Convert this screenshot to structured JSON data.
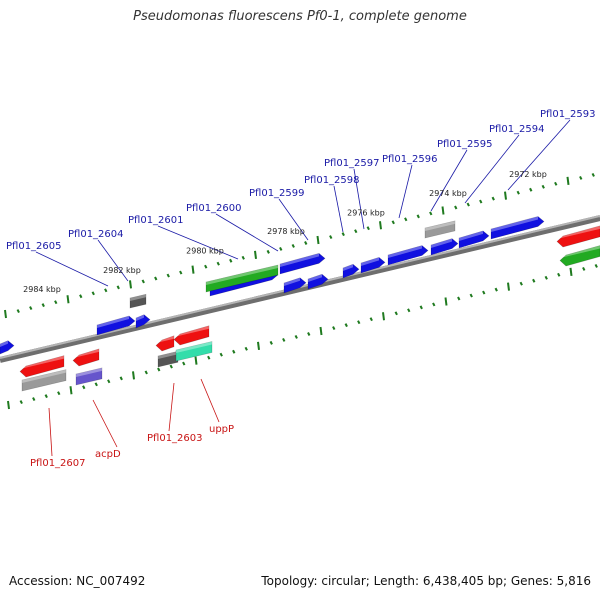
{
  "title": "Pseudomonas fluorescens Pf0-1, complete genome",
  "accession": "Accession: NC_007492",
  "summary": "Topology: circular; Length: 6,438,405 bp; Genes: 5,816",
  "colors": {
    "backbone": "#8a8a8a",
    "tick": "#1f7a1f",
    "forward_label": "#1a1aa6",
    "reverse_label": "#c81414",
    "blue_gene": "#1010e0",
    "red_gene": "#ee1111",
    "green_gene": "#22aa22",
    "gray_gene": "#9a9a9a",
    "dark_gene": "#555555",
    "violet_gene": "#6655cc",
    "cyan_gene": "#33ddaa"
  },
  "kbp_labels": [
    "2984 kbp",
    "2982 kbp",
    "2980 kbp",
    "2978 kbp",
    "2976 kbp",
    "2974 kbp",
    "2972 kbp"
  ],
  "forward_genes": [
    "Pfl01_2605",
    "Pfl01_2604",
    "Pfl01_2601",
    "Pfl01_2600",
    "Pfl01_2599",
    "Pfl01_2598",
    "Pfl01_2597",
    "Pfl01_2596",
    "Pfl01_2595",
    "Pfl01_2594",
    "Pfl01_2593"
  ],
  "reverse_genes": [
    "Pfl01_2607",
    "acpD",
    "Pfl01_2603",
    "uppP"
  ]
}
